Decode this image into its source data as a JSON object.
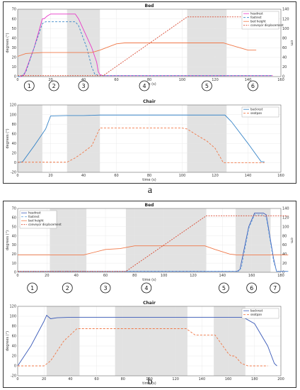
{
  "labels": {
    "a": "a",
    "b": "b"
  },
  "chart_data": [
    {
      "id": "a-bed",
      "type": "line",
      "title": "Bed",
      "xlabel": "time (s)",
      "ylabel": "degrees (°)",
      "y2label": "cm",
      "xlim": [
        0,
        160
      ],
      "ylim": [
        0,
        70
      ],
      "y2lim": [
        0,
        140
      ],
      "xticks": [
        0,
        20,
        40,
        60,
        80,
        100,
        120,
        140,
        160
      ],
      "yticks": [
        0,
        10,
        20,
        30,
        40,
        50,
        60,
        70
      ],
      "y2ticks": [
        0,
        20,
        40,
        60,
        80,
        100,
        120,
        140
      ],
      "grid": true,
      "legend": "top-right",
      "shaded": [
        [
          0,
          15
        ],
        [
          30,
          50
        ],
        [
          103,
          127
        ]
      ],
      "phases": [
        {
          "label": "1",
          "x": 7
        },
        {
          "label": "2",
          "x": 22
        },
        {
          "label": "3",
          "x": 40
        },
        {
          "label": "4",
          "x": 77
        },
        {
          "label": "5",
          "x": 115
        },
        {
          "label": "6",
          "x": 143
        }
      ],
      "series": [
        {
          "name": "headrest",
          "axis": "left",
          "color": "#e838c8",
          "dash": "",
          "x": [
            0,
            2,
            4,
            10,
            15,
            16,
            18,
            20,
            22,
            35,
            37,
            45,
            48,
            49,
            50,
            52,
            155
          ],
          "y": [
            0,
            0,
            2,
            30,
            60,
            60,
            63,
            65,
            65,
            65,
            60,
            30,
            15,
            5,
            2,
            1,
            1
          ]
        },
        {
          "name": "footrest",
          "axis": "left",
          "color": "#3a86c8",
          "dash": "3,2",
          "x": [
            0,
            2,
            5,
            10,
            15,
            17,
            20,
            35,
            37,
            42,
            45,
            47,
            50,
            155
          ],
          "y": [
            0,
            0,
            5,
            30,
            55,
            57,
            57,
            57,
            53,
            30,
            10,
            2,
            1,
            1
          ]
        },
        {
          "name": "bed height",
          "axis": "right",
          "color": "#f07848",
          "dash": "",
          "x": [
            0,
            5,
            15,
            30,
            45,
            50,
            60,
            65,
            125,
            130,
            140,
            145
          ],
          "y": [
            42,
            48,
            50,
            50,
            50,
            55,
            68,
            70,
            70,
            65,
            55,
            55
          ]
        },
        {
          "name": "conveyor displacement",
          "axis": "right",
          "color": "#d84830",
          "dash": "2,1.5",
          "x": [
            0,
            52,
            103,
            155
          ],
          "y": [
            2,
            2,
            124,
            124
          ]
        }
      ]
    },
    {
      "id": "a-chair",
      "type": "line",
      "title": "Chair",
      "xlabel": "time (s)",
      "ylabel": "degrees (°)",
      "xlim": [
        0,
        160
      ],
      "ylim": [
        -20,
        120
      ],
      "xticks": [
        0,
        20,
        40,
        60,
        80,
        100,
        120,
        140,
        160
      ],
      "yticks": [
        -20,
        0,
        20,
        40,
        60,
        80,
        100,
        120
      ],
      "grid": true,
      "legend": "top-right",
      "shaded": [
        [
          0,
          15
        ],
        [
          30,
          50
        ],
        [
          103,
          127
        ]
      ],
      "series": [
        {
          "name": "backrest",
          "axis": "left",
          "color": "#3a86c8",
          "dash": "",
          "x": [
            0,
            3,
            10,
            17,
            20,
            30,
            40,
            50,
            100,
            126,
            130,
            140,
            148,
            150
          ],
          "y": [
            0,
            2,
            35,
            70,
            97,
            98,
            98,
            99,
            99,
            99,
            85,
            40,
            2,
            2
          ]
        },
        {
          "name": "seatpan",
          "axis": "left",
          "color": "#f07848",
          "dash": "3,2",
          "x": [
            0,
            5,
            15,
            30,
            35,
            40,
            45,
            50,
            100,
            103,
            110,
            115,
            120,
            125,
            150
          ],
          "y": [
            1,
            1,
            1,
            1,
            10,
            22,
            35,
            72,
            72,
            70,
            55,
            45,
            30,
            0,
            0
          ]
        }
      ]
    },
    {
      "id": "b-bed",
      "type": "line",
      "title": "Bed",
      "xlabel": "time (s)",
      "ylabel": "degrees (°)",
      "y2label": "cm",
      "xlim": [
        0,
        180
      ],
      "ylim": [
        0,
        70
      ],
      "y2lim": [
        0,
        140
      ],
      "xticks": [
        0,
        20,
        40,
        60,
        80,
        100,
        120,
        140,
        160,
        180
      ],
      "yticks": [
        0,
        10,
        20,
        30,
        40,
        50,
        60,
        70
      ],
      "y2ticks": [
        0,
        20,
        40,
        60,
        80,
        100,
        120,
        140
      ],
      "grid": true,
      "legend": "top-left",
      "shaded": [
        [
          22,
          47
        ],
        [
          74,
          129
        ],
        [
          149,
          173
        ]
      ],
      "phases": [
        {
          "label": "1",
          "x": 10
        },
        {
          "label": "2",
          "x": 34
        },
        {
          "label": "3",
          "x": 60
        },
        {
          "label": "4",
          "x": 88
        },
        {
          "label": "5",
          "x": 141
        },
        {
          "label": "6",
          "x": 160
        },
        {
          "label": "7",
          "x": 176
        }
      ],
      "series": [
        {
          "name": "headrest",
          "axis": "left",
          "color": "#3a5ab8",
          "dash": "",
          "x": [
            0,
            150,
            152,
            158,
            162,
            168,
            170,
            175,
            177,
            185
          ],
          "y": [
            1,
            1,
            3,
            50,
            65,
            65,
            63,
            15,
            1,
            1
          ]
        },
        {
          "name": "footrest",
          "axis": "left",
          "color": "#6aa8e0",
          "dash": "3,2",
          "x": [
            0,
            151,
            153,
            158,
            162,
            168,
            170,
            175,
            177,
            185
          ],
          "y": [
            1,
            1,
            5,
            48,
            63,
            63,
            60,
            12,
            1,
            1
          ]
        },
        {
          "name": "bed height",
          "axis": "right",
          "color": "#f07848",
          "dash": "",
          "x": [
            0,
            45,
            50,
            60,
            70,
            80,
            128,
            135,
            145,
            150,
            185
          ],
          "y": [
            38,
            38,
            42,
            50,
            52,
            58,
            58,
            50,
            40,
            38,
            38
          ]
        },
        {
          "name": "conveyor displacement",
          "axis": "right",
          "color": "#d84830",
          "dash": "2,1.5",
          "x": [
            0,
            74,
            129,
            185
          ],
          "y": [
            2,
            2,
            124,
            124
          ]
        }
      ]
    },
    {
      "id": "b-chair",
      "type": "line",
      "title": "Chair",
      "xlabel": "time (s)",
      "ylabel": "degrees (°)",
      "xlim": [
        0,
        200
      ],
      "ylim": [
        -20,
        120
      ],
      "xticks": [
        0,
        20,
        40,
        60,
        80,
        100,
        120,
        140,
        160,
        180,
        200
      ],
      "yticks": [
        -20,
        0,
        20,
        40,
        60,
        80,
        100,
        120
      ],
      "grid": true,
      "legend": "top-right",
      "shaded": [
        [
          22,
          47
        ],
        [
          74,
          129
        ],
        [
          149,
          173
        ]
      ],
      "series": [
        {
          "name": "backrest",
          "axis": "left",
          "color": "#3a5ab8",
          "dash": "",
          "x": [
            0,
            10,
            20,
            22,
            25,
            30,
            40,
            170,
            172,
            180,
            190,
            195,
            197
          ],
          "y": [
            0,
            40,
            90,
            102,
            95,
            97,
            98,
            98,
            97,
            85,
            40,
            5,
            0
          ]
        },
        {
          "name": "seatpan",
          "axis": "left",
          "color": "#f07848",
          "dash": "3,2",
          "x": [
            0,
            20,
            25,
            30,
            35,
            45,
            128,
            135,
            150,
            160,
            162,
            165,
            170,
            175,
            190
          ],
          "y": [
            0,
            0,
            10,
            30,
            50,
            75,
            75,
            62,
            62,
            25,
            20,
            20,
            5,
            0,
            0
          ]
        }
      ]
    }
  ]
}
